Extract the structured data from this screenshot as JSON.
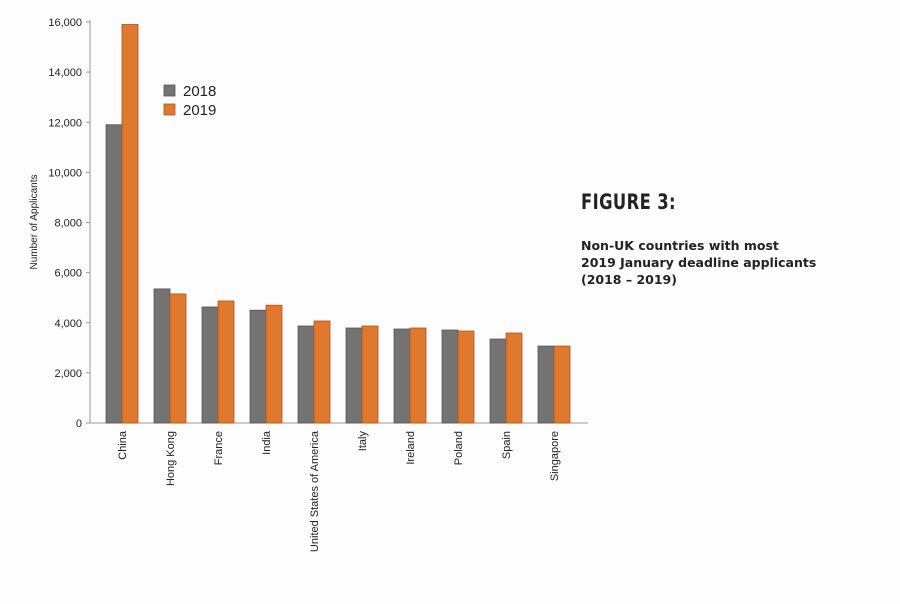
{
  "chart_data": {
    "type": "bar",
    "title": "FIGURE 3:",
    "subtitle": [
      "Non-UK countries with most",
      "2019 January deadline applicants",
      "(2018 – 2019)"
    ],
    "xlabel": "",
    "ylabel": "Number of Applicants",
    "ylim": [
      0,
      16000
    ],
    "yticks": [
      0,
      2000,
      4000,
      6000,
      8000,
      10000,
      12000,
      14000,
      16000
    ],
    "ytick_labels": [
      "0",
      "2,000",
      "4,000",
      "6,000",
      "8,000",
      "10,000",
      "12,000",
      "14,000",
      "16,000"
    ],
    "categories": [
      "China",
      "Hong Kong",
      "France",
      "India",
      "United States of America",
      "Italy",
      "Ireland",
      "Poland",
      "Spain",
      "Singapore"
    ],
    "series": [
      {
        "name": "2018",
        "color": "#737373",
        "values": [
          11900,
          5350,
          4630,
          4500,
          3870,
          3790,
          3750,
          3710,
          3350,
          3070
        ]
      },
      {
        "name": "2019",
        "color": "#e2782d",
        "values": [
          15900,
          5150,
          4870,
          4700,
          4070,
          3870,
          3790,
          3670,
          3590,
          3070
        ]
      }
    ],
    "legend": "top-left",
    "grid": false
  }
}
